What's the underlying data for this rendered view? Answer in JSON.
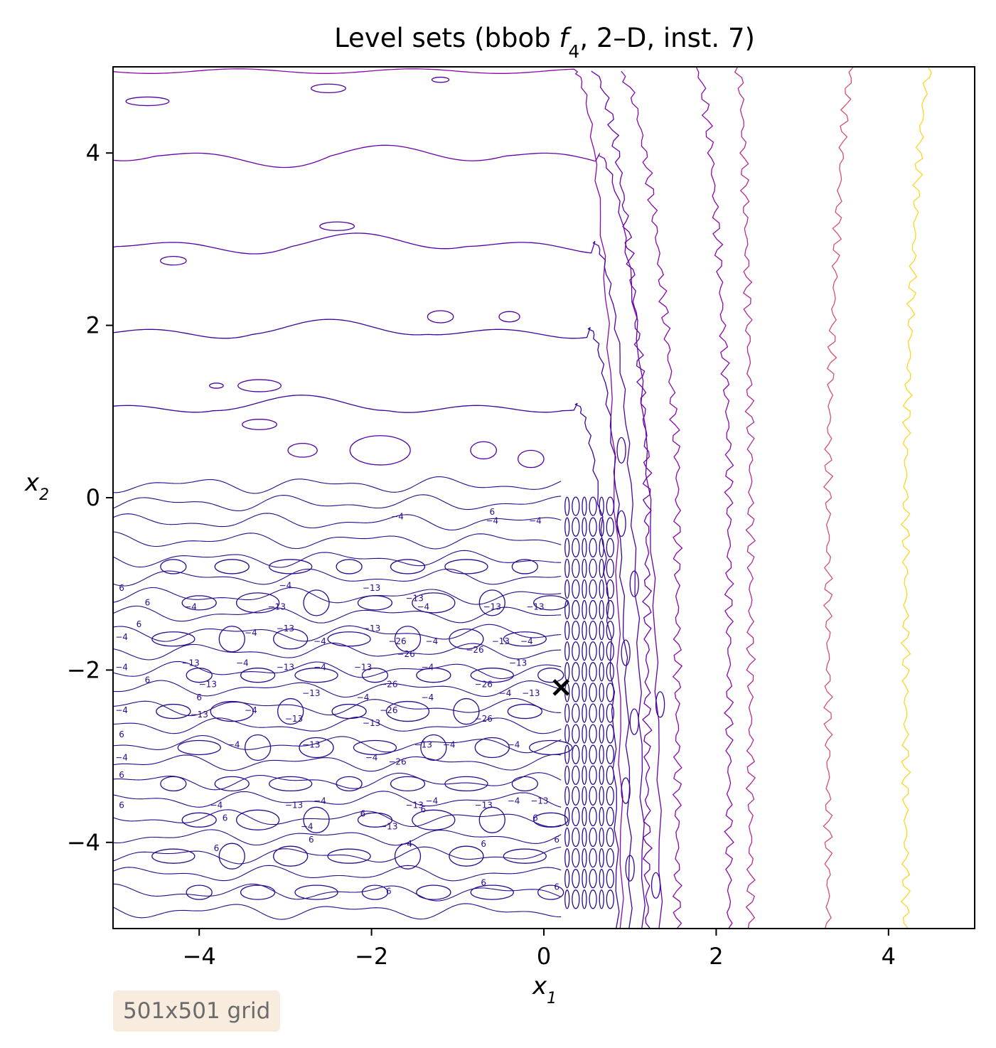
{
  "chart_data": {
    "type": "contour",
    "title_prefix": "Level sets (bbob ",
    "title_func": "f",
    "title_sub": "4",
    "title_suffix": ", 2–D, inst. 7)",
    "xlabel": "x",
    "xlabel_sub": "1",
    "ylabel": "x",
    "ylabel_sub": "2",
    "xlim": [
      -5,
      5
    ],
    "ylim": [
      -5,
      5
    ],
    "xticks": [
      -4,
      -2,
      0,
      2,
      4
    ],
    "yticks": [
      -4,
      -2,
      0,
      2,
      4
    ],
    "xtick_labels": [
      "−4",
      "−2",
      "0",
      "2",
      "4"
    ],
    "ytick_labels": [
      "−4",
      "−2",
      "0",
      "2",
      "4"
    ],
    "grid": false,
    "colormap": "plasma",
    "level_colors": [
      "#2a0a8c",
      "#3b049a",
      "#5102a3",
      "#6a00a8",
      "#8a09a5",
      "#b12a90",
      "#d35171",
      "#fbd524"
    ],
    "contour_labels": [
      "−26",
      "−13",
      "−4",
      "6"
    ],
    "optimum_marker": {
      "x": 0.2,
      "y": -2.2,
      "symbol": "×",
      "color": "#000000"
    },
    "outer_level_x_at_bottom": [
      1.2,
      1.55,
      2.15,
      2.4,
      3.3,
      4.2
    ],
    "outer_level_x_at_top": [
      0.55,
      0.85,
      1.75,
      2.25,
      3.6,
      4.5
    ]
  },
  "annotation": {
    "grid_label": "501x501 grid"
  }
}
